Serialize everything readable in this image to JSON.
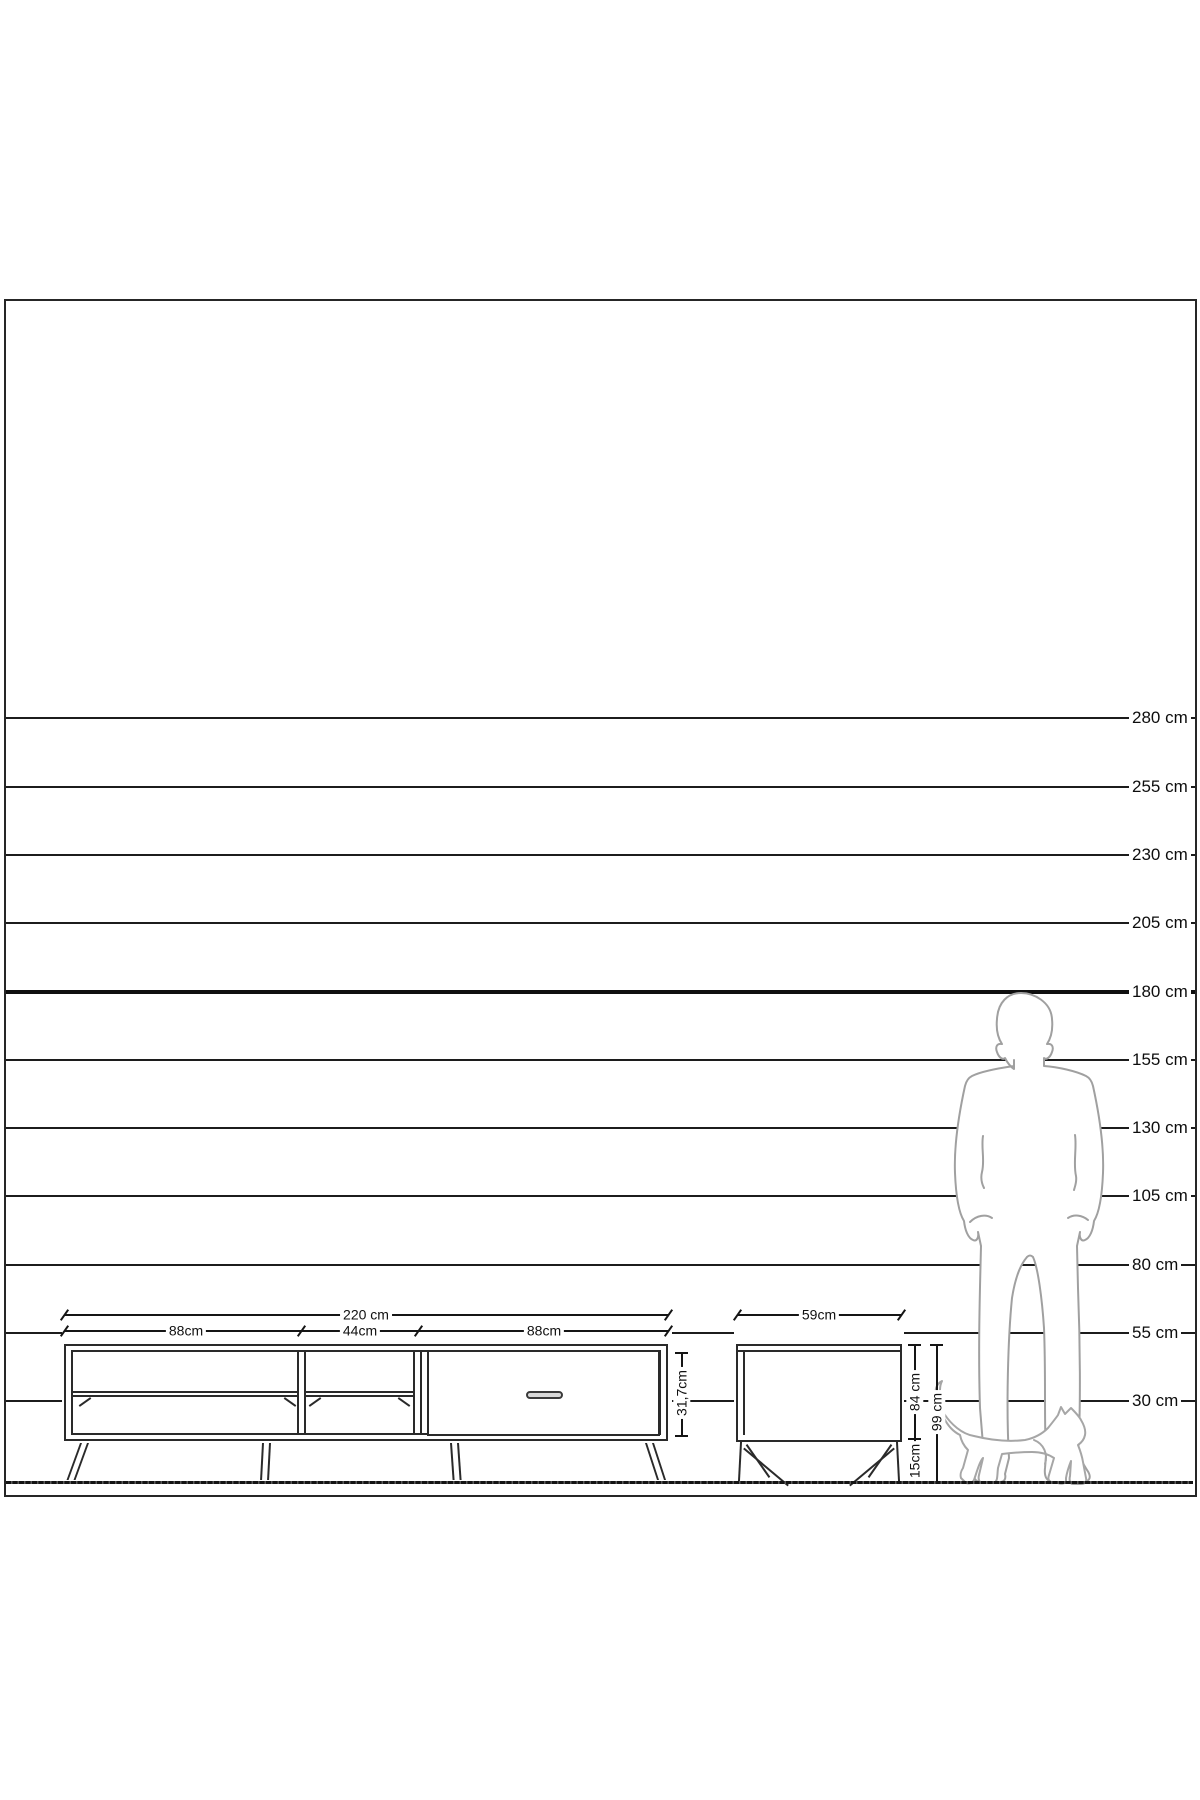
{
  "scale_ruler": {
    "lines": [
      {
        "label": "280 cm",
        "cm": 280,
        "bold": false
      },
      {
        "label": "255 cm",
        "cm": 255,
        "bold": false
      },
      {
        "label": "230 cm",
        "cm": 230,
        "bold": false
      },
      {
        "label": "205 cm",
        "cm": 205,
        "bold": false
      },
      {
        "label": "180 cm",
        "cm": 180,
        "bold": true
      },
      {
        "label": "155 cm",
        "cm": 155,
        "bold": false
      },
      {
        "label": "130 cm",
        "cm": 130,
        "bold": false
      },
      {
        "label": "105 cm",
        "cm": 105,
        "bold": false
      },
      {
        "label": "80 cm",
        "cm": 80,
        "bold": false
      },
      {
        "label": "55 cm",
        "cm": 55,
        "bold": false
      },
      {
        "label": "30 cm",
        "cm": 30,
        "bold": false
      }
    ]
  },
  "tv_stand": {
    "width_total_label": "220 cm",
    "section_labels": [
      "88cm",
      "44cm",
      "88cm"
    ],
    "height_label": "31,7cm"
  },
  "side_table": {
    "width_label": "59cm",
    "body_height_label": "84 cm",
    "leg_height_label": "15cm",
    "total_height_label": "99 cm"
  },
  "figures": {
    "man": "standing-man-silhouette",
    "cat": "walking-cat-silhouette"
  },
  "colors": {
    "line": "#1c1c1c",
    "furniture_line": "#2a2a2a",
    "figure_outline": "#a0a0a0",
    "background": "#ffffff"
  }
}
